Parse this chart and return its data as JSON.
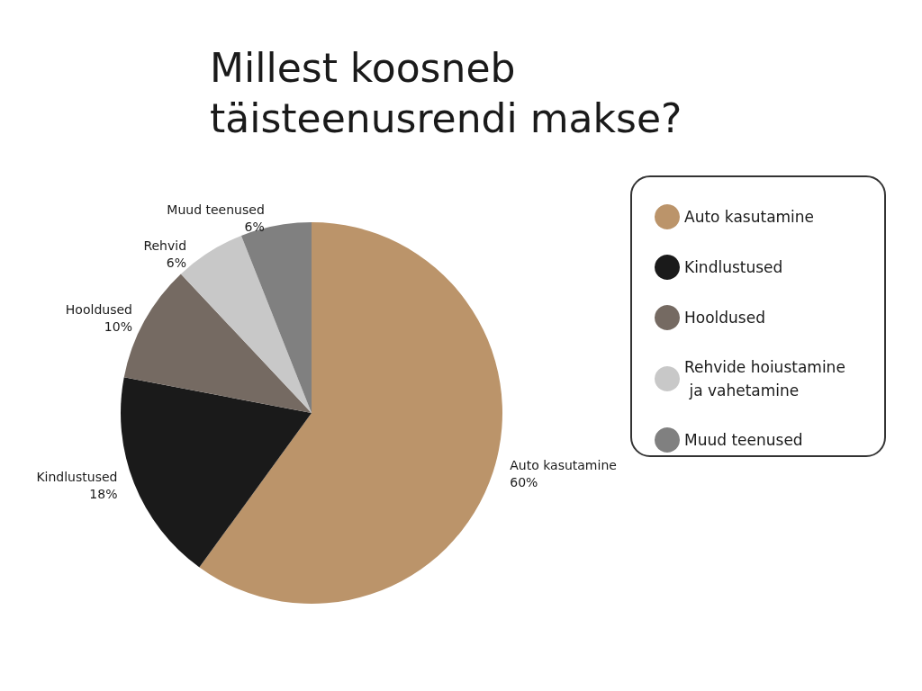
{
  "chart_data": {
    "type": "pie",
    "title": "Millest koosneb täisteenusrendi makse?",
    "categories": [
      "Auto kasutamine",
      "Kindlustused",
      "Hooldused",
      "Rehvide hoiustamine ja vahetamine",
      "Muud teenused"
    ],
    "values": [
      60,
      18,
      10,
      6,
      6
    ],
    "colors": [
      "#bb946a",
      "#1a1a1a",
      "#756a62",
      "#c8c8c8",
      "#808080"
    ],
    "value_labels": [
      "Auto kasutamine\n60%",
      "Kindlustused\n18%",
      "Hooldused\n10%",
      "Rehvid\n6%",
      "Muud teenused\n6%"
    ],
    "legend": "right"
  }
}
